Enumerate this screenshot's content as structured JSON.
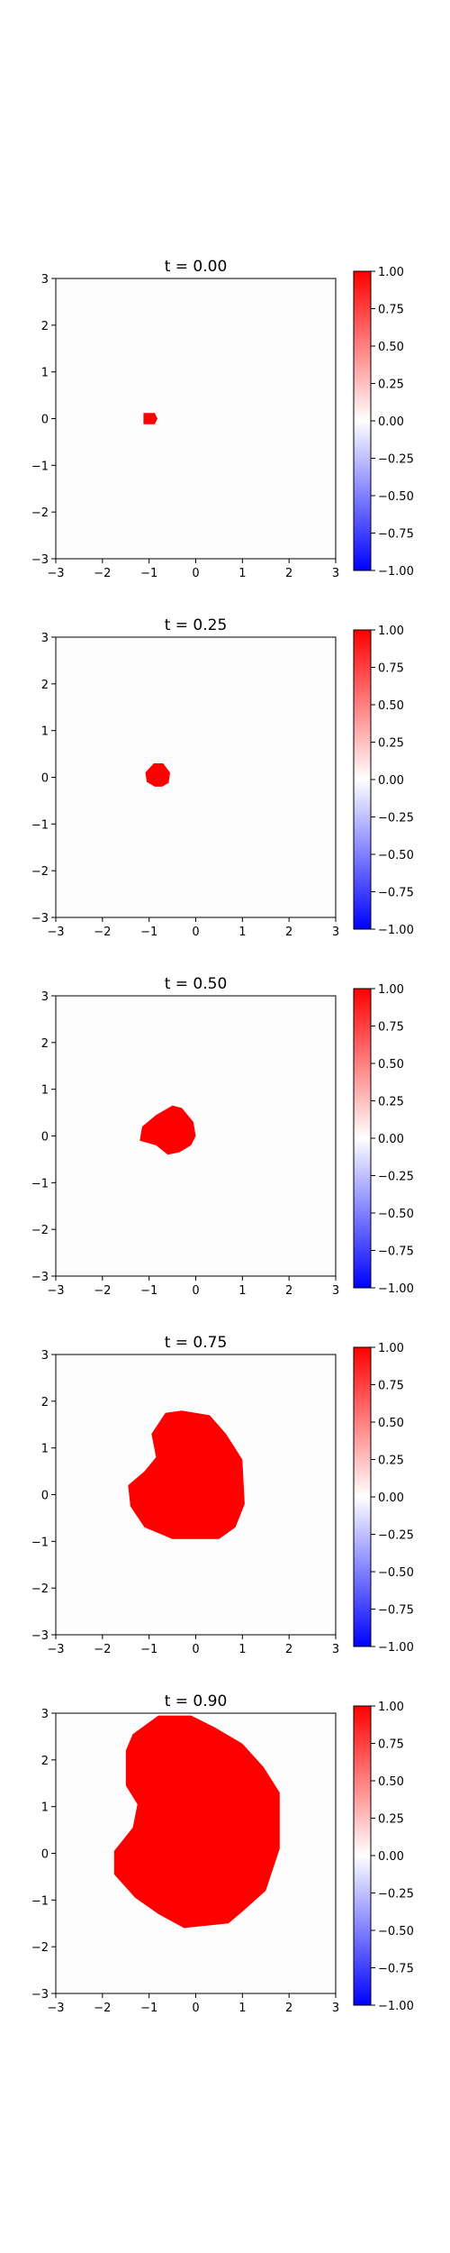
{
  "chart_data": [
    {
      "type": "heatmap",
      "title": "t = 0.00",
      "xlim": [
        -3,
        3
      ],
      "ylim": [
        -3,
        3
      ],
      "xticks": [
        "−3",
        "−2",
        "−1",
        "0",
        "1",
        "2",
        "3"
      ],
      "yticks": [
        "−3",
        "−2",
        "−1",
        "0",
        "1",
        "2",
        "3"
      ],
      "colorbar": {
        "min": -1,
        "max": 1,
        "ticks": [
          "−1.00",
          "−0.75",
          "−0.50",
          "−0.25",
          "0.00",
          "0.25",
          "0.50",
          "0.75",
          "1.00"
        ],
        "colormap": "bwr"
      },
      "background_value": 0,
      "region_value": 1,
      "region_boundary": [
        [
          -1.12,
          0.12
        ],
        [
          -0.88,
          0.12
        ],
        [
          -0.82,
          0.0
        ],
        [
          -0.88,
          -0.12
        ],
        [
          -1.12,
          -0.12
        ]
      ]
    },
    {
      "type": "heatmap",
      "title": "t = 0.25",
      "xlim": [
        -3,
        3
      ],
      "ylim": [
        -3,
        3
      ],
      "xticks": [
        "−3",
        "−2",
        "−1",
        "0",
        "1",
        "2",
        "3"
      ],
      "yticks": [
        "−3",
        "−2",
        "−1",
        "0",
        "1",
        "2",
        "3"
      ],
      "colorbar": {
        "min": -1,
        "max": 1,
        "ticks": [
          "−1.00",
          "−0.75",
          "−0.50",
          "−0.25",
          "0.00",
          "0.25",
          "0.50",
          "0.75",
          "1.00"
        ],
        "colormap": "bwr"
      },
      "background_value": 0,
      "region_value": 1,
      "region_boundary": [
        [
          -0.9,
          0.3
        ],
        [
          -0.7,
          0.3
        ],
        [
          -0.55,
          0.1
        ],
        [
          -0.58,
          -0.12
        ],
        [
          -0.72,
          -0.2
        ],
        [
          -0.88,
          -0.2
        ],
        [
          -1.05,
          -0.1
        ],
        [
          -1.08,
          0.1
        ]
      ]
    },
    {
      "type": "heatmap",
      "title": "t = 0.50",
      "xlim": [
        -3,
        3
      ],
      "ylim": [
        -3,
        3
      ],
      "xticks": [
        "−3",
        "−2",
        "−1",
        "0",
        "1",
        "2",
        "3"
      ],
      "yticks": [
        "−3",
        "−2",
        "−1",
        "0",
        "1",
        "2",
        "3"
      ],
      "colorbar": {
        "min": -1,
        "max": 1,
        "ticks": [
          "−1.00",
          "−0.75",
          "−0.50",
          "−0.25",
          "0.00",
          "0.25",
          "0.50",
          "0.75",
          "1.00"
        ],
        "colormap": "bwr"
      },
      "background_value": 0,
      "region_value": 1,
      "region_boundary": [
        [
          -0.5,
          0.65
        ],
        [
          -0.3,
          0.6
        ],
        [
          -0.05,
          0.3
        ],
        [
          -0.0,
          0.0
        ],
        [
          -0.1,
          -0.2
        ],
        [
          -0.35,
          -0.35
        ],
        [
          -0.6,
          -0.4
        ],
        [
          -0.85,
          -0.2
        ],
        [
          -1.2,
          -0.1
        ],
        [
          -1.15,
          0.2
        ],
        [
          -0.85,
          0.45
        ]
      ]
    },
    {
      "type": "heatmap",
      "title": "t = 0.75",
      "xlim": [
        -3,
        3
      ],
      "ylim": [
        -3,
        3
      ],
      "xticks": [
        "−3",
        "−2",
        "−1",
        "0",
        "1",
        "2",
        "3"
      ],
      "yticks": [
        "−3",
        "−2",
        "−1",
        "0",
        "1",
        "2",
        "3"
      ],
      "colorbar": {
        "min": -1,
        "max": 1,
        "ticks": [
          "−1.00",
          "−0.75",
          "−0.50",
          "−0.25",
          "0.00",
          "0.25",
          "0.50",
          "0.75",
          "1.00"
        ],
        "colormap": "bwr"
      },
      "background_value": 0,
      "region_value": 1,
      "region_boundary": [
        [
          -0.65,
          1.75
        ],
        [
          -0.3,
          1.8
        ],
        [
          0.3,
          1.7
        ],
        [
          0.65,
          1.3
        ],
        [
          1.0,
          0.75
        ],
        [
          1.05,
          -0.2
        ],
        [
          0.85,
          -0.7
        ],
        [
          0.5,
          -0.95
        ],
        [
          -0.5,
          -0.95
        ],
        [
          -1.1,
          -0.7
        ],
        [
          -1.4,
          -0.25
        ],
        [
          -1.45,
          0.2
        ],
        [
          -1.1,
          0.5
        ],
        [
          -0.85,
          0.8
        ],
        [
          -0.95,
          1.3
        ]
      ]
    },
    {
      "type": "heatmap",
      "title": "t = 0.90",
      "xlim": [
        -3,
        3
      ],
      "ylim": [
        -3,
        3
      ],
      "xticks": [
        "−3",
        "−2",
        "−1",
        "0",
        "1",
        "2",
        "3"
      ],
      "yticks": [
        "−3",
        "−2",
        "−1",
        "0",
        "1",
        "2",
        "3"
      ],
      "colorbar": {
        "min": -1,
        "max": 1,
        "ticks": [
          "−1.00",
          "−0.75",
          "−0.50",
          "−0.25",
          "0.00",
          "0.25",
          "0.50",
          "0.75",
          "1.00"
        ],
        "colormap": "bwr"
      },
      "background_value": 0,
      "region_value": 1,
      "region_boundary": [
        [
          -1.35,
          2.55
        ],
        [
          -0.8,
          2.95
        ],
        [
          -0.1,
          2.95
        ],
        [
          0.4,
          2.7
        ],
        [
          1.0,
          2.35
        ],
        [
          1.45,
          1.85
        ],
        [
          1.8,
          1.3
        ],
        [
          1.8,
          0.1
        ],
        [
          1.5,
          -0.8
        ],
        [
          1.0,
          -1.25
        ],
        [
          0.7,
          -1.5
        ],
        [
          -0.25,
          -1.6
        ],
        [
          -0.8,
          -1.3
        ],
        [
          -1.3,
          -0.95
        ],
        [
          -1.75,
          -0.45
        ],
        [
          -1.75,
          0.05
        ],
        [
          -1.35,
          0.55
        ],
        [
          -1.25,
          1.05
        ],
        [
          -1.5,
          1.45
        ],
        [
          -1.5,
          2.2
        ]
      ]
    }
  ]
}
